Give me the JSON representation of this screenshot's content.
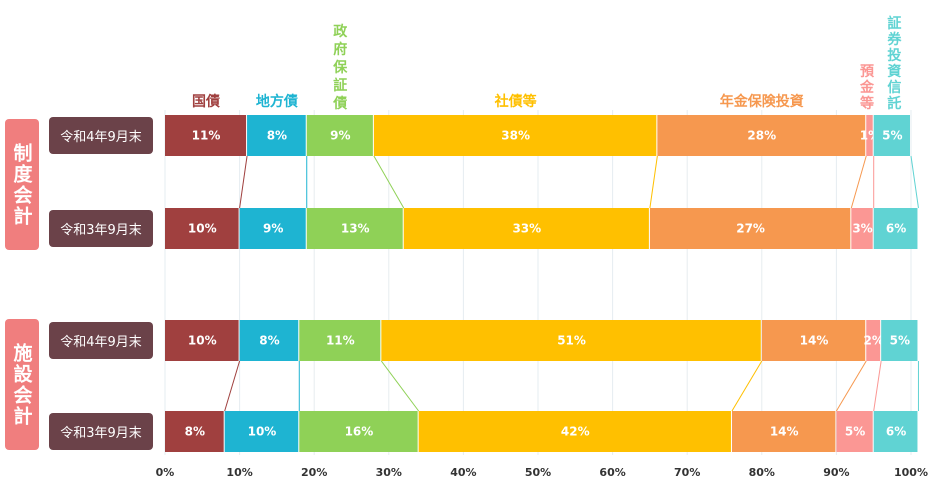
{
  "chart_data": {
    "type": "bar",
    "stacked": true,
    "orientation": "horizontal",
    "xlim": [
      0,
      100
    ],
    "x_ticks": [
      "0%",
      "10%",
      "20%",
      "30%",
      "40%",
      "50%",
      "60%",
      "70%",
      "80%",
      "90%",
      "100%"
    ],
    "grid": true,
    "series": [
      {
        "name": "国債",
        "color": "#a0403f"
      },
      {
        "name": "地方債",
        "color": "#1eb4d2"
      },
      {
        "name": "政府保証債",
        "color": "#8fd157"
      },
      {
        "name": "社債等",
        "color": "#ffc000"
      },
      {
        "name": "年金保険投資",
        "color": "#f6984f"
      },
      {
        "name": "預金等",
        "color": "#fb9794"
      },
      {
        "name": "証券投資信託",
        "color": "#60d3d3"
      }
    ],
    "groups": [
      {
        "name": "制度会計",
        "rows": [
          {
            "label": "令和4年9月末",
            "values": [
              11,
              8,
              9,
              38,
              28,
              1,
              5
            ],
            "value_labels": [
              "11%",
              "8%",
              "9%",
              "38%",
              "28%",
              "1%",
              "5%"
            ]
          },
          {
            "label": "令和3年9月末",
            "values": [
              10,
              9,
              13,
              33,
              27,
              3,
              6
            ],
            "value_labels": [
              "10%",
              "9%",
              "13%",
              "33%",
              "27%",
              "3%",
              "6%"
            ]
          }
        ]
      },
      {
        "name": "施設会計",
        "rows": [
          {
            "label": "令和4年9月末",
            "values": [
              10,
              8,
              11,
              51,
              14,
              2,
              5
            ],
            "value_labels": [
              "10%",
              "8%",
              "11%",
              "51%",
              "14%",
              "2%",
              "5%"
            ]
          },
          {
            "label": "令和3年9月末",
            "values": [
              8,
              10,
              16,
              42,
              14,
              5,
              6
            ],
            "value_labels": [
              "8%",
              "10%",
              "16%",
              "42%",
              "14%",
              "5%",
              "6%"
            ]
          }
        ]
      }
    ]
  }
}
